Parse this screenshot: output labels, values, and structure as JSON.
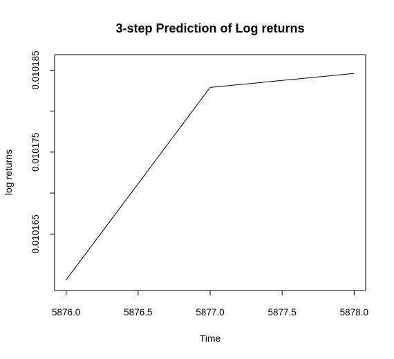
{
  "chart_data": {
    "type": "line",
    "title": "3-step Prediction of Log returns",
    "xlabel": "Time",
    "ylabel": "log returns",
    "x": [
      5876.0,
      5877.0,
      5878.0
    ],
    "series": [
      {
        "values": [
          0.0101594,
          0.0101829,
          0.0101846
        ]
      }
    ],
    "xlim": [
      5875.92,
      5878.08
    ],
    "ylim": [
      0.0101581,
      0.0101869
    ],
    "x_ticks": [
      5876.0,
      5876.5,
      5877.0,
      5877.5,
      5878.0
    ],
    "x_tick_labels": [
      "5876.0",
      "5876.5",
      "5877.0",
      "5877.5",
      "5878.0"
    ],
    "y_ticks": [
      0.010165,
      0.01017,
      0.010175,
      0.01018,
      0.010185
    ],
    "y_tick_labels": [
      "0.010165",
      "",
      "0.010175",
      "",
      "0.010185"
    ],
    "grid": false,
    "line_color": "#000000"
  }
}
